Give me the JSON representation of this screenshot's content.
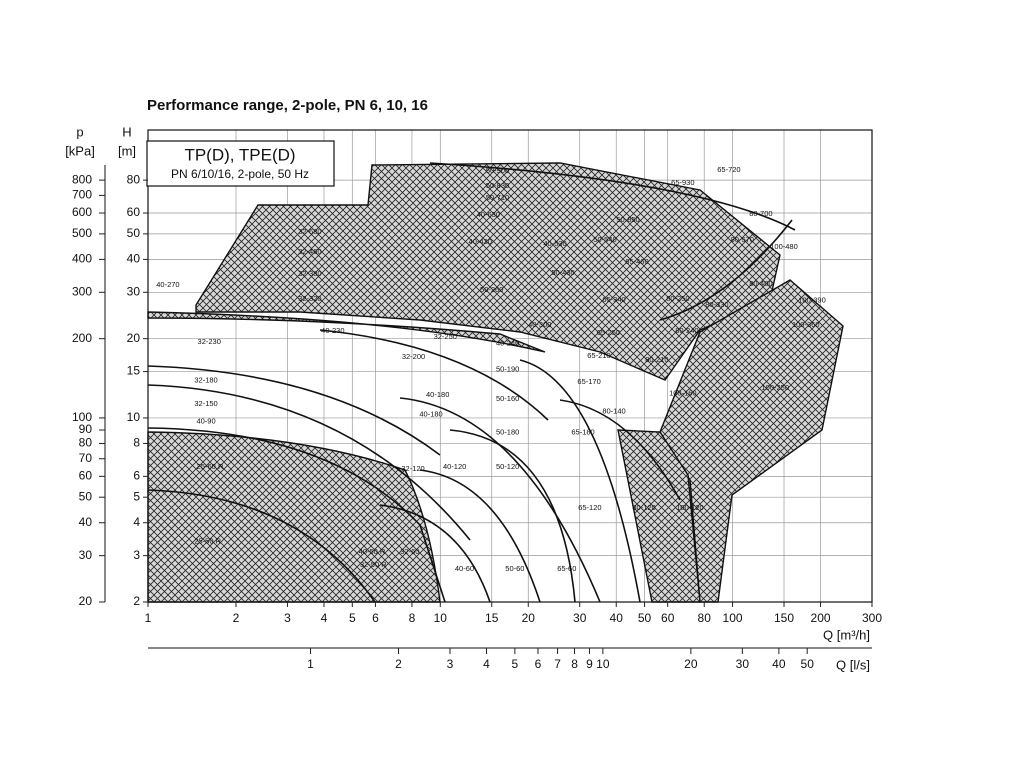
{
  "chart_data": {
    "type": "pump-range",
    "title": "Performance range, 2-pole, PN 6, 10, 16",
    "legend_title": "TP(D), TPE(D)",
    "legend_subtitle": "PN 6/10/16, 2-pole, 50 Hz",
    "x_label": "Q [m³/h]",
    "x2_label": "Q [l/s]",
    "y_label": "H",
    "y_unit": "[m]",
    "y2_label": "p",
    "y2_unit": "[kPa]",
    "log_scale": true,
    "grid": true,
    "xlim": [
      1,
      300
    ],
    "xticks": [
      1,
      2,
      3,
      4,
      5,
      6,
      8,
      10,
      15,
      20,
      30,
      40,
      50,
      60,
      80,
      100,
      150,
      200,
      300
    ],
    "x2lim": [
      0.278,
      83.3
    ],
    "x2ticks": [
      1,
      2,
      3,
      4,
      5,
      6,
      7,
      8,
      9,
      10,
      20,
      30,
      40,
      50
    ],
    "ylim": [
      2,
      124
    ],
    "yticks": [
      2,
      3,
      4,
      5,
      6,
      8,
      10,
      15,
      20,
      30,
      40,
      50,
      60,
      80
    ],
    "y2lim": [
      20,
      1240
    ],
    "y2ticks": [
      20,
      30,
      40,
      50,
      60,
      70,
      80,
      90,
      100,
      200,
      300,
      400,
      500,
      600,
      700,
      800
    ],
    "pump_ranges": [
      {
        "label": "40-270",
        "q": 1.17,
        "h": 32
      },
      {
        "label": "32-230",
        "q": 1.62,
        "h": 19.4
      },
      {
        "label": "32-180",
        "q": 1.58,
        "h": 13.9
      },
      {
        "label": "32-150",
        "q": 1.58,
        "h": 11.3
      },
      {
        "label": "40-90",
        "q": 1.58,
        "h": 9.7
      },
      {
        "label": "25-60 R",
        "q": 1.63,
        "h": 6.5
      },
      {
        "label": "25-50 R",
        "q": 1.6,
        "h": 3.4
      },
      {
        "label": "32-680",
        "q": 3.58,
        "h": 50.8
      },
      {
        "label": "32-460",
        "q": 3.58,
        "h": 42.6
      },
      {
        "label": "32-380",
        "q": 3.58,
        "h": 35.2
      },
      {
        "label": "32-320",
        "q": 3.58,
        "h": 28.3
      },
      {
        "label": "40-230",
        "q": 4.29,
        "h": 21.4
      },
      {
        "label": "32-250",
        "q": 10.4,
        "h": 20.3
      },
      {
        "label": "32-200",
        "q": 8.1,
        "h": 17
      },
      {
        "label": "40-180",
        "q": 9.8,
        "h": 12.2
      },
      {
        "label": "40-180",
        "q": 9.3,
        "h": 10.3
      },
      {
        "label": "40-120",
        "q": 11.2,
        "h": 6.5
      },
      {
        "label": "32-120",
        "q": 8.07,
        "h": 6.4
      },
      {
        "label": "40-60",
        "q": 12.1,
        "h": 2.67
      },
      {
        "label": "40-50 R",
        "q": 5.84,
        "h": 3.1
      },
      {
        "label": "32-50 R",
        "q": 5.9,
        "h": 2.76
      },
      {
        "label": "32-60",
        "q": 7.87,
        "h": 3.1
      },
      {
        "label": "50-900",
        "q": 15.7,
        "h": 86.5
      },
      {
        "label": "50-830",
        "q": 15.7,
        "h": 75.9
      },
      {
        "label": "50-710",
        "q": 15.7,
        "h": 68.4
      },
      {
        "label": "40-630",
        "q": 14.6,
        "h": 58.9
      },
      {
        "label": "40-430",
        "q": 13.7,
        "h": 46.5
      },
      {
        "label": "40-530",
        "q": 24.7,
        "h": 45.7
      },
      {
        "label": "50-540",
        "q": 36.6,
        "h": 47.3
      },
      {
        "label": "50-850",
        "q": 43.9,
        "h": 56.4
      },
      {
        "label": "65-930",
        "q": 67.6,
        "h": 78
      },
      {
        "label": "65-720",
        "q": 97.2,
        "h": 87.3
      },
      {
        "label": "80-700",
        "q": 125,
        "h": 59.4
      },
      {
        "label": "100-480",
        "q": 150,
        "h": 44.6
      },
      {
        "label": "80-570",
        "q": 108,
        "h": 47.3
      },
      {
        "label": "80-400",
        "q": 125,
        "h": 32.2
      },
      {
        "label": "50-260",
        "q": 15,
        "h": 30.6
      },
      {
        "label": "40-300",
        "q": 21.9,
        "h": 22.5
      },
      {
        "label": "40-240",
        "q": 17,
        "h": 19.2
      },
      {
        "label": "50-190",
        "q": 17,
        "h": 15.3
      },
      {
        "label": "50-160",
        "q": 17,
        "h": 11.8
      },
      {
        "label": "50-180",
        "q": 17,
        "h": 8.8
      },
      {
        "label": "50-120",
        "q": 17,
        "h": 6.5
      },
      {
        "label": "50-60",
        "q": 18,
        "h": 2.67
      },
      {
        "label": "65-60",
        "q": 27.1,
        "h": 2.67
      },
      {
        "label": "65-120",
        "q": 32.5,
        "h": 4.55
      },
      {
        "label": "80-120",
        "q": 49.8,
        "h": 4.55
      },
      {
        "label": "100-120",
        "q": 71.5,
        "h": 4.55
      },
      {
        "label": "65-170",
        "q": 32.3,
        "h": 13.7
      },
      {
        "label": "80-140",
        "q": 39.3,
        "h": 10.6
      },
      {
        "label": "65-180",
        "q": 30.8,
        "h": 8.8
      },
      {
        "label": "65-210",
        "q": 34.9,
        "h": 17.2
      },
      {
        "label": "50-430",
        "q": 26.3,
        "h": 35.5
      },
      {
        "label": "65-460",
        "q": 47.1,
        "h": 39.1
      },
      {
        "label": "65-340",
        "q": 39.3,
        "h": 28
      },
      {
        "label": "65-250",
        "q": 37.6,
        "h": 21
      },
      {
        "label": "80-250",
        "q": 65,
        "h": 28.3
      },
      {
        "label": "80-330",
        "q": 88.4,
        "h": 26.8
      },
      {
        "label": "80-240",
        "q": 69.8,
        "h": 21.4
      },
      {
        "label": "80-210",
        "q": 55.1,
        "h": 16.6
      },
      {
        "label": "100-160",
        "q": 67.6,
        "h": 12.4
      },
      {
        "label": "100-250",
        "q": 140,
        "h": 13
      },
      {
        "label": "100-390",
        "q": 187,
        "h": 27.9
      },
      {
        "label": "100-360",
        "q": 178,
        "h": 22.5
      }
    ]
  }
}
